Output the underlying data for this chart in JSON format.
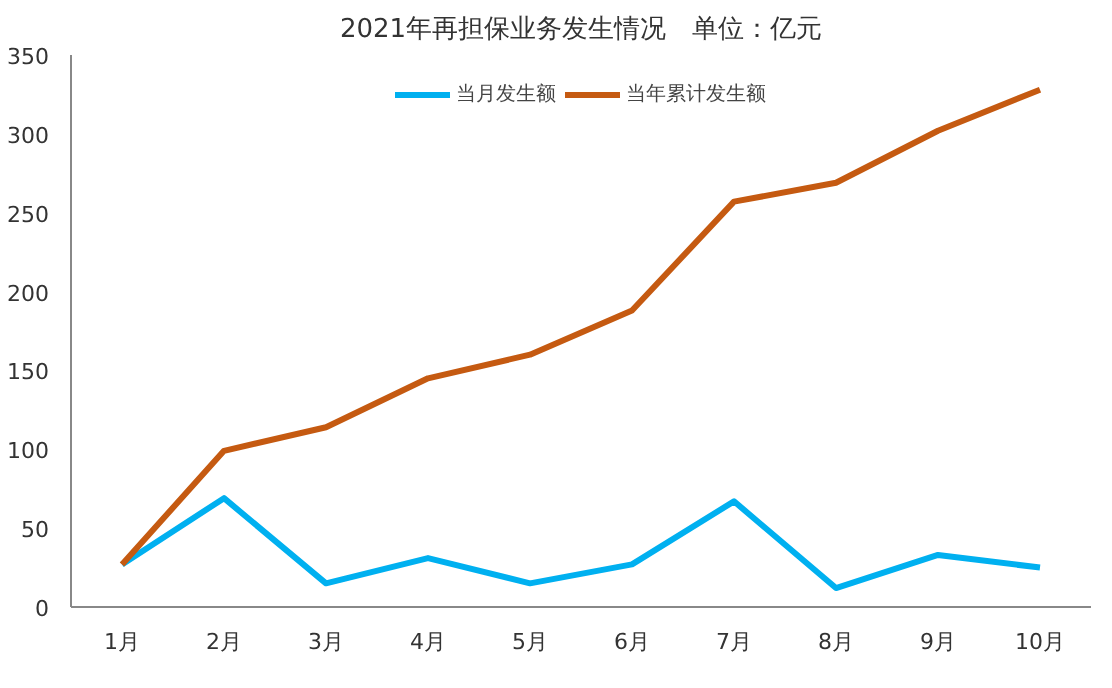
{
  "chart_data": {
    "type": "line",
    "title": "2021年再担保业务发生情况　单位：亿元",
    "categories": [
      "1月",
      "2月",
      "3月",
      "4月",
      "5月",
      "6月",
      "7月",
      "8月",
      "9月",
      "10月"
    ],
    "series": [
      {
        "name": "当月发生额",
        "color": "#00b0f0",
        "values": [
          27,
          69,
          15,
          31,
          15,
          27,
          67,
          12,
          33,
          25
        ]
      },
      {
        "name": "当年累计发生额",
        "color": "#c55a11",
        "values": [
          27,
          99,
          114,
          145,
          160,
          188,
          257,
          269,
          302,
          328
        ]
      }
    ],
    "ylim": [
      0,
      350
    ],
    "yticks": [
      0,
      50,
      100,
      150,
      200,
      250,
      300,
      350
    ],
    "grid": false,
    "legend": "top",
    "marker": "none",
    "line_style": "solid"
  }
}
